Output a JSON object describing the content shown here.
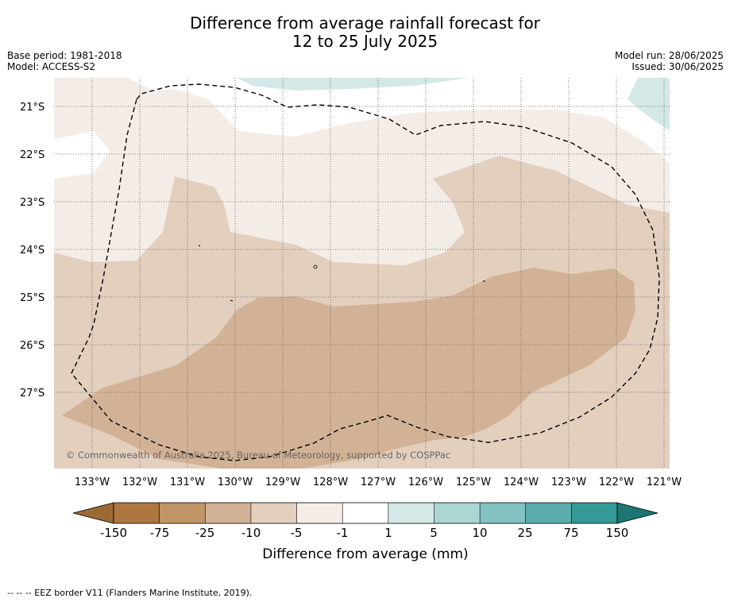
{
  "title": {
    "line1": "Difference from average rainfall forecast for",
    "line2": "12 to 25 July 2025"
  },
  "meta": {
    "base_period": "Base period: 1981-2018",
    "model": "Model: ACCESS-S2",
    "model_run": "Model run: 28/06/2025",
    "issued": "Issued: 30/06/2025"
  },
  "copyright": "© Commonwealth of Australia 2025, Bureau of Meteorology, supported by COSPPac",
  "map": {
    "lat_labels": [
      "21°S",
      "22°S",
      "23°S",
      "24°S",
      "25°S",
      "26°S",
      "27°S"
    ],
    "lon_labels": [
      "133°W",
      "132°W",
      "131°W",
      "130°W",
      "129°W",
      "128°W",
      "127°W",
      "126°W",
      "125°W",
      "124°W",
      "123°W",
      "122°W",
      "121°W"
    ],
    "regions": [
      {
        "category": "-5 to -1",
        "color": "#f4ede7"
      },
      {
        "category": "-10 to -5",
        "color": "#e3cfbe"
      },
      {
        "category": "-25 to -10",
        "color": "#d2b296"
      },
      {
        "category": "1 to 5",
        "color": "#d3e8e7"
      }
    ],
    "eez_border_style": "dashed"
  },
  "colorbar": {
    "label": "Difference from average (mm)",
    "ticks": [
      "-150",
      "-75",
      "-25",
      "-10",
      "-5",
      "-1",
      "1",
      "5",
      "10",
      "25",
      "75",
      "150"
    ],
    "colors": [
      "#9c6935",
      "#ae7640",
      "#c29567",
      "#d2b296",
      "#e3cfbe",
      "#f4ede7",
      "#ffffff",
      "#d3e8e7",
      "#aad6d4",
      "#82c2c0",
      "#5aadab",
      "#339a97",
      "#1e7673"
    ]
  },
  "footnote": "--  --  -- EEZ border V11 (Flanders Marine Institute, 2019)."
}
